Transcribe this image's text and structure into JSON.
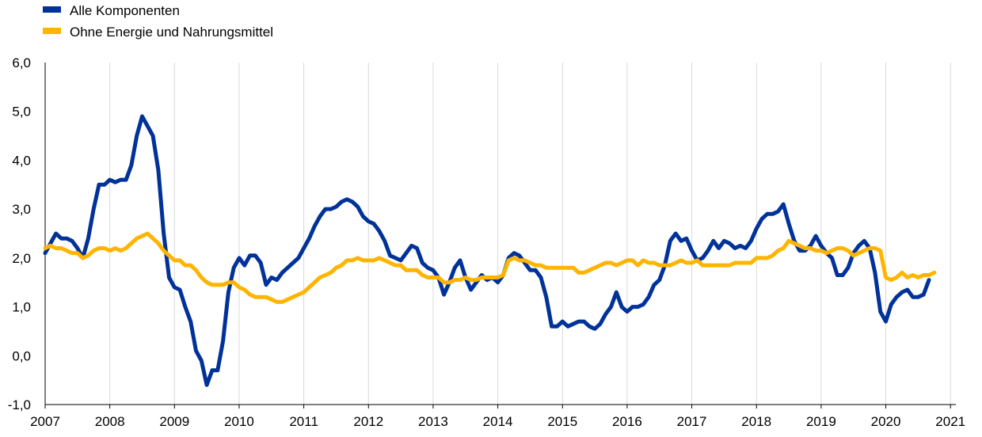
{
  "chart_data": {
    "type": "line",
    "title": "",
    "xlabel": "",
    "ylabel": "",
    "x_start": "2007-01",
    "x_end": "2021-02",
    "xlim": [
      "2007-01",
      "2021-02"
    ],
    "ylim": [
      -1.0,
      6.0
    ],
    "y_ticks": [
      "-1,0",
      "0,0",
      "1,0",
      "2,0",
      "3,0",
      "4,0",
      "5,0",
      "6,0"
    ],
    "x_ticks": [
      "2007",
      "2008",
      "2009",
      "2010",
      "2011",
      "2012",
      "2013",
      "2014",
      "2015",
      "2016",
      "2017",
      "2018",
      "2019",
      "2020",
      "2021"
    ],
    "grid": "vertical",
    "legend_position": "top-left",
    "series": [
      {
        "name": "Alle Komponenten",
        "color": "#003299",
        "values": [
          2.1,
          2.3,
          2.5,
          2.4,
          2.4,
          2.35,
          2.2,
          2.0,
          2.4,
          3.0,
          3.5,
          3.5,
          3.6,
          3.55,
          3.6,
          3.6,
          3.9,
          4.5,
          4.9,
          4.7,
          4.5,
          3.8,
          2.5,
          1.6,
          1.4,
          1.35,
          1.0,
          0.7,
          0.1,
          -0.1,
          -0.6,
          -0.3,
          -0.3,
          0.3,
          1.3,
          1.8,
          2.0,
          1.85,
          2.05,
          2.05,
          1.9,
          1.45,
          1.6,
          1.55,
          1.7,
          1.8,
          1.9,
          2.0,
          2.2,
          2.4,
          2.65,
          2.85,
          3.0,
          3.0,
          3.05,
          3.15,
          3.2,
          3.15,
          3.05,
          2.85,
          2.75,
          2.7,
          2.55,
          2.35,
          2.05,
          2.0,
          1.95,
          2.1,
          2.25,
          2.2,
          1.9,
          1.8,
          1.75,
          1.6,
          1.25,
          1.5,
          1.8,
          1.95,
          1.6,
          1.35,
          1.5,
          1.65,
          1.55,
          1.6,
          1.5,
          1.65,
          2.0,
          2.1,
          2.05,
          1.9,
          1.75,
          1.75,
          1.6,
          1.2,
          0.6,
          0.6,
          0.7,
          0.6,
          0.65,
          0.7,
          0.7,
          0.6,
          0.55,
          0.65,
          0.85,
          1.0,
          1.3,
          1.0,
          0.9,
          1.0,
          1.0,
          1.05,
          1.2,
          1.45,
          1.55,
          1.85,
          2.35,
          2.5,
          2.35,
          2.4,
          2.15,
          1.95,
          2.0,
          2.15,
          2.35,
          2.2,
          2.35,
          2.3,
          2.2,
          2.25,
          2.2,
          2.35,
          2.6,
          2.8,
          2.9,
          2.9,
          2.95,
          3.1,
          2.7,
          2.35,
          2.15,
          2.15,
          2.25,
          2.45,
          2.25,
          2.1,
          2.0,
          1.65,
          1.65,
          1.8,
          2.1,
          2.25,
          2.35,
          2.2,
          1.7,
          0.9,
          0.7,
          1.05,
          1.2,
          1.3,
          1.35,
          1.2,
          1.2,
          1.25,
          1.55
        ]
      },
      {
        "name": "Ohne Energie und Nahrungsmittel",
        "color": "#ffb400",
        "values": [
          2.2,
          2.25,
          2.2,
          2.2,
          2.15,
          2.1,
          2.1,
          2.0,
          2.05,
          2.15,
          2.2,
          2.2,
          2.15,
          2.2,
          2.15,
          2.2,
          2.3,
          2.4,
          2.45,
          2.5,
          2.4,
          2.3,
          2.15,
          2.05,
          1.95,
          1.95,
          1.85,
          1.85,
          1.75,
          1.6,
          1.5,
          1.45,
          1.45,
          1.45,
          1.5,
          1.5,
          1.4,
          1.35,
          1.25,
          1.2,
          1.2,
          1.2,
          1.15,
          1.1,
          1.1,
          1.15,
          1.2,
          1.25,
          1.3,
          1.4,
          1.5,
          1.6,
          1.65,
          1.7,
          1.8,
          1.85,
          1.95,
          1.95,
          2.0,
          1.95,
          1.95,
          1.95,
          2.0,
          1.95,
          1.9,
          1.85,
          1.85,
          1.75,
          1.75,
          1.75,
          1.65,
          1.6,
          1.6,
          1.6,
          1.5,
          1.5,
          1.55,
          1.55,
          1.6,
          1.55,
          1.55,
          1.6,
          1.6,
          1.6,
          1.6,
          1.65,
          1.95,
          2.0,
          1.95,
          1.95,
          1.9,
          1.85,
          1.85,
          1.8,
          1.8,
          1.8,
          1.8,
          1.8,
          1.8,
          1.7,
          1.7,
          1.75,
          1.8,
          1.85,
          1.9,
          1.9,
          1.85,
          1.9,
          1.95,
          1.95,
          1.85,
          1.95,
          1.9,
          1.9,
          1.85,
          1.85,
          1.85,
          1.9,
          1.95,
          1.9,
          1.9,
          1.95,
          1.85,
          1.85,
          1.85,
          1.85,
          1.85,
          1.85,
          1.9,
          1.9,
          1.9,
          1.9,
          2.0,
          2.0,
          2.0,
          2.05,
          2.15,
          2.2,
          2.35,
          2.3,
          2.25,
          2.2,
          2.2,
          2.15,
          2.15,
          2.1,
          2.15,
          2.2,
          2.2,
          2.15,
          2.05,
          2.1,
          2.15,
          2.2,
          2.2,
          2.15,
          1.6,
          1.55,
          1.6,
          1.7,
          1.6,
          1.65,
          1.6,
          1.65,
          1.65,
          1.7
        ]
      }
    ]
  }
}
